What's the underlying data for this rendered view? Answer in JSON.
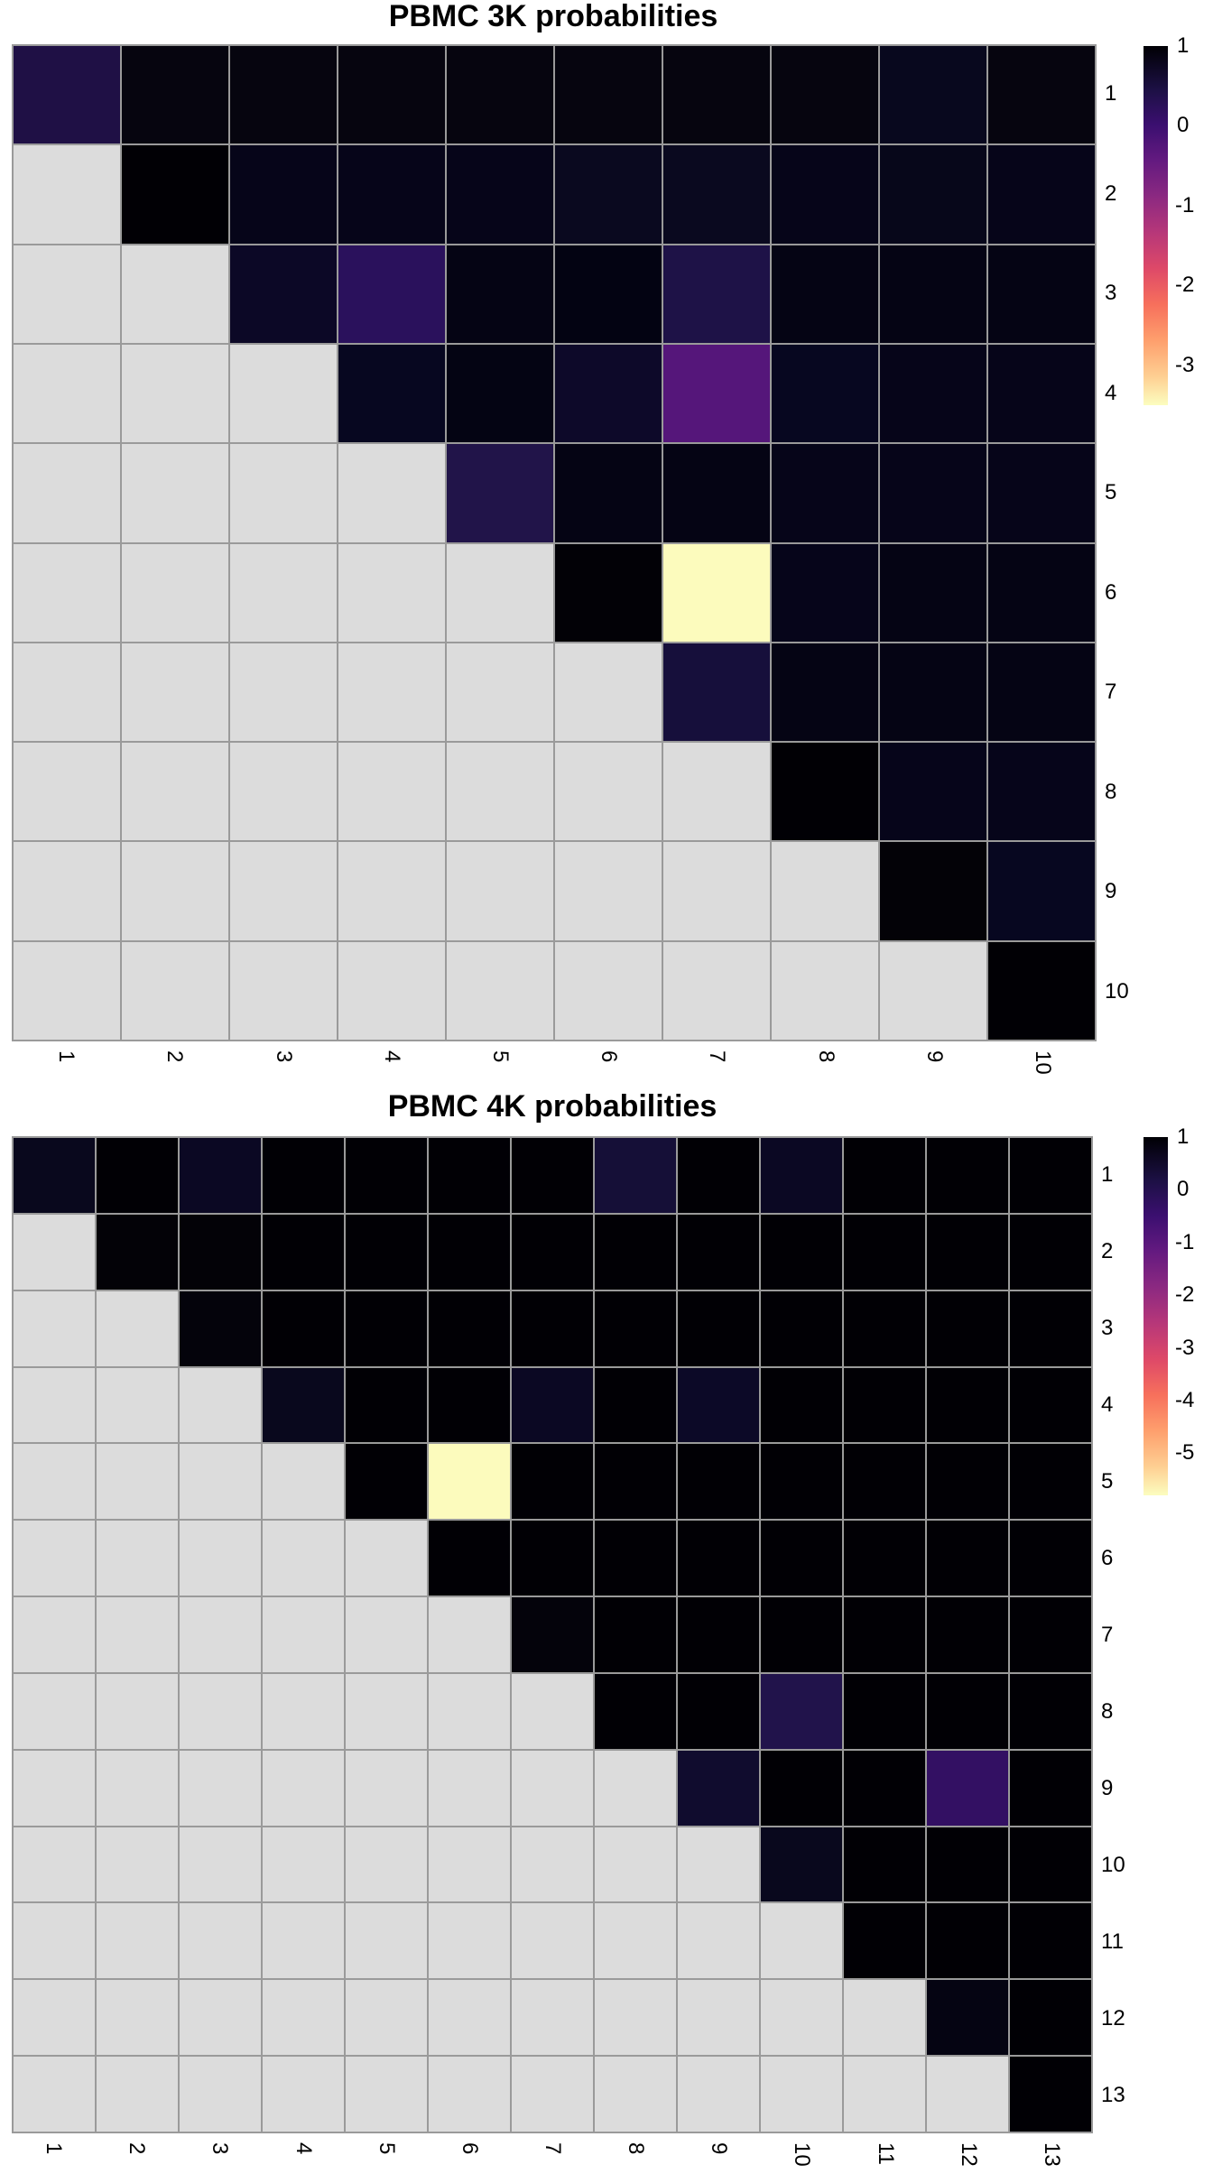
{
  "chart_data": [
    {
      "type": "heatmap",
      "title": "PBMC 3K probabilities",
      "x_labels": [
        "1",
        "2",
        "3",
        "4",
        "5",
        "6",
        "7",
        "8",
        "9",
        "10"
      ],
      "y_labels": [
        "1",
        "2",
        "3",
        "4",
        "5",
        "6",
        "7",
        "8",
        "9",
        "10"
      ],
      "layout": "upper-triangular; lower triangle shown as light grey (NA)",
      "colorscale": "magma",
      "legend": {
        "ticks": [
          "1",
          "0",
          "-1",
          "-2",
          "-3"
        ],
        "range": [
          -3.5,
          1
        ]
      },
      "values": [
        [
          0.05,
          0.85,
          0.85,
          0.85,
          0.85,
          0.85,
          0.85,
          0.85,
          0.75,
          0.85
        ],
        [
          null,
          1.0,
          0.85,
          0.85,
          0.85,
          0.7,
          0.7,
          0.85,
          0.8,
          0.85
        ],
        [
          null,
          null,
          0.6,
          -0.1,
          0.85,
          0.9,
          0.15,
          0.85,
          0.85,
          0.85
        ],
        [
          null,
          null,
          null,
          0.7,
          0.85,
          0.55,
          -0.6,
          0.75,
          0.8,
          0.8
        ],
        [
          null,
          null,
          null,
          null,
          0.2,
          0.85,
          0.85,
          0.8,
          0.8,
          0.8
        ],
        [
          null,
          null,
          null,
          null,
          null,
          1.0,
          -3.5,
          0.8,
          0.8,
          0.8
        ],
        [
          null,
          null,
          null,
          null,
          null,
          null,
          0.35,
          0.8,
          0.8,
          0.8
        ],
        [
          null,
          null,
          null,
          null,
          null,
          null,
          null,
          1.0,
          0.8,
          0.8
        ],
        [
          null,
          null,
          null,
          null,
          null,
          null,
          null,
          null,
          0.95,
          0.7
        ],
        [
          null,
          null,
          null,
          null,
          null,
          null,
          null,
          null,
          null,
          1.0
        ]
      ],
      "colors": [
        [
          "#1f1045",
          "#06050f",
          "#06050f",
          "#06050f",
          "#06050f",
          "#06050f",
          "#06050f",
          "#06050f",
          "#08081e",
          "#06050f"
        ],
        [
          null,
          "#010005",
          "#060519",
          "#060519",
          "#060519",
          "#0a091f",
          "#0a091f",
          "#060519",
          "#07071a",
          "#060519"
        ],
        [
          null,
          null,
          "#0c0826",
          "#2a115c",
          "#050414",
          "#030312",
          "#1e1247",
          "#050414",
          "#050414",
          "#050414"
        ],
        [
          null,
          null,
          null,
          "#070720",
          "#040413",
          "#0d0929",
          "#55167a",
          "#070720",
          "#060519",
          "#060519"
        ],
        [
          null,
          null,
          null,
          null,
          "#211449",
          "#050414",
          "#050414",
          "#060519",
          "#060519",
          "#060519"
        ],
        [
          null,
          null,
          null,
          null,
          null,
          "#020106",
          "#fcfbbd",
          "#06051a",
          "#050414",
          "#050414"
        ],
        [
          null,
          null,
          null,
          null,
          null,
          null,
          "#160f3b",
          "#050414",
          "#050414",
          "#050414"
        ],
        [
          null,
          null,
          null,
          null,
          null,
          null,
          null,
          "#010005",
          "#06051a",
          "#06051a"
        ],
        [
          null,
          null,
          null,
          null,
          null,
          null,
          null,
          null,
          "#030207",
          "#070720"
        ],
        [
          null,
          null,
          null,
          null,
          null,
          null,
          null,
          null,
          null,
          "#010005"
        ]
      ]
    },
    {
      "type": "heatmap",
      "title": "PBMC 4K probabilities",
      "x_labels": [
        "1",
        "2",
        "3",
        "4",
        "5",
        "6",
        "7",
        "8",
        "9",
        "10",
        "11",
        "12",
        "13"
      ],
      "y_labels": [
        "1",
        "2",
        "3",
        "4",
        "5",
        "6",
        "7",
        "8",
        "9",
        "10",
        "11",
        "12",
        "13"
      ],
      "layout": "upper-triangular; lower triangle shown as light grey (NA)",
      "colorscale": "magma",
      "legend": {
        "ticks": [
          "1",
          "0",
          "-1",
          "-2",
          "-3",
          "-4",
          "-5"
        ],
        "range": [
          -5.8,
          1
        ]
      },
      "values": [
        [
          0.7,
          1.0,
          0.6,
          1.0,
          1.0,
          1.0,
          1.0,
          0.4,
          1.0,
          0.6,
          1.0,
          1.0,
          1.0
        ],
        [
          null,
          0.95,
          0.95,
          1.0,
          1.0,
          1.0,
          1.0,
          1.0,
          1.0,
          1.0,
          1.0,
          1.0,
          1.0
        ],
        [
          null,
          null,
          0.9,
          1.0,
          1.0,
          1.0,
          1.0,
          1.0,
          1.0,
          1.0,
          1.0,
          1.0,
          1.0
        ],
        [
          null,
          null,
          null,
          0.6,
          1.0,
          1.0,
          0.6,
          1.0,
          0.55,
          1.0,
          1.0,
          1.0,
          1.0
        ],
        [
          null,
          null,
          null,
          null,
          1.0,
          -5.8,
          1.0,
          1.0,
          1.0,
          1.0,
          1.0,
          1.0,
          1.0
        ],
        [
          null,
          null,
          null,
          null,
          null,
          1.0,
          1.0,
          1.0,
          1.0,
          1.0,
          1.0,
          1.0,
          1.0
        ],
        [
          null,
          null,
          null,
          null,
          null,
          null,
          0.95,
          1.0,
          1.0,
          1.0,
          1.0,
          1.0,
          1.0
        ],
        [
          null,
          null,
          null,
          null,
          null,
          null,
          null,
          1.0,
          1.0,
          0.1,
          1.0,
          1.0,
          1.0
        ],
        [
          null,
          null,
          null,
          null,
          null,
          null,
          null,
          null,
          0.45,
          1.0,
          1.0,
          -0.2,
          1.0
        ],
        [
          null,
          null,
          null,
          null,
          null,
          null,
          null,
          null,
          null,
          0.65,
          1.0,
          1.0,
          1.0
        ],
        [
          null,
          null,
          null,
          null,
          null,
          null,
          null,
          null,
          null,
          null,
          1.0,
          1.0,
          1.0
        ],
        [
          null,
          null,
          null,
          null,
          null,
          null,
          null,
          null,
          null,
          null,
          null,
          0.85,
          1.0
        ],
        [
          null,
          null,
          null,
          null,
          null,
          null,
          null,
          null,
          null,
          null,
          null,
          null,
          1.0
        ]
      ],
      "colors": [
        [
          "#09081d",
          "#010005",
          "#0b0823",
          "#010005",
          "#010005",
          "#010005",
          "#010005",
          "#150f37",
          "#010005",
          "#0b0823",
          "#010005",
          "#010005",
          "#010005"
        ],
        [
          null,
          "#030207",
          "#030207",
          "#010005",
          "#010005",
          "#010005",
          "#010005",
          "#010005",
          "#010005",
          "#010005",
          "#010005",
          "#010005",
          "#010005"
        ],
        [
          null,
          null,
          "#04030b",
          "#010005",
          "#010005",
          "#010005",
          "#010005",
          "#010005",
          "#010005",
          "#010005",
          "#010005",
          "#010005",
          "#010005"
        ],
        [
          null,
          null,
          null,
          "#09081d",
          "#010005",
          "#010005",
          "#0b0823",
          "#010005",
          "#0c0927",
          "#010005",
          "#010005",
          "#010005",
          "#010005"
        ],
        [
          null,
          null,
          null,
          null,
          "#010005",
          "#fcfbbd",
          "#010005",
          "#010005",
          "#010005",
          "#010005",
          "#010005",
          "#010005",
          "#010005"
        ],
        [
          null,
          null,
          null,
          null,
          null,
          "#010005",
          "#010005",
          "#010005",
          "#010005",
          "#010005",
          "#010005",
          "#010005",
          "#010005"
        ],
        [
          null,
          null,
          null,
          null,
          null,
          null,
          "#04030b",
          "#010005",
          "#010005",
          "#010005",
          "#010005",
          "#010005",
          "#010005"
        ],
        [
          null,
          null,
          null,
          null,
          null,
          null,
          null,
          "#010005",
          "#010005",
          "#21134b",
          "#010005",
          "#010005",
          "#010005"
        ],
        [
          null,
          null,
          null,
          null,
          null,
          null,
          null,
          null,
          "#100c2e",
          "#010005",
          "#010005",
          "#331063",
          "#010005"
        ],
        [
          null,
          null,
          null,
          null,
          null,
          null,
          null,
          null,
          null,
          "#09081d",
          "#010005",
          "#010005",
          "#010005"
        ],
        [
          null,
          null,
          null,
          null,
          null,
          null,
          null,
          null,
          null,
          null,
          "#010005",
          "#010005",
          "#010005"
        ],
        [
          null,
          null,
          null,
          null,
          null,
          null,
          null,
          null,
          null,
          null,
          null,
          "#050412",
          "#010005"
        ],
        [
          null,
          null,
          null,
          null,
          null,
          null,
          null,
          null,
          null,
          null,
          null,
          null,
          "#010005"
        ]
      ]
    }
  ],
  "style": {
    "na_color": "#dcdcdc",
    "border_color": "#9a9a9a"
  }
}
